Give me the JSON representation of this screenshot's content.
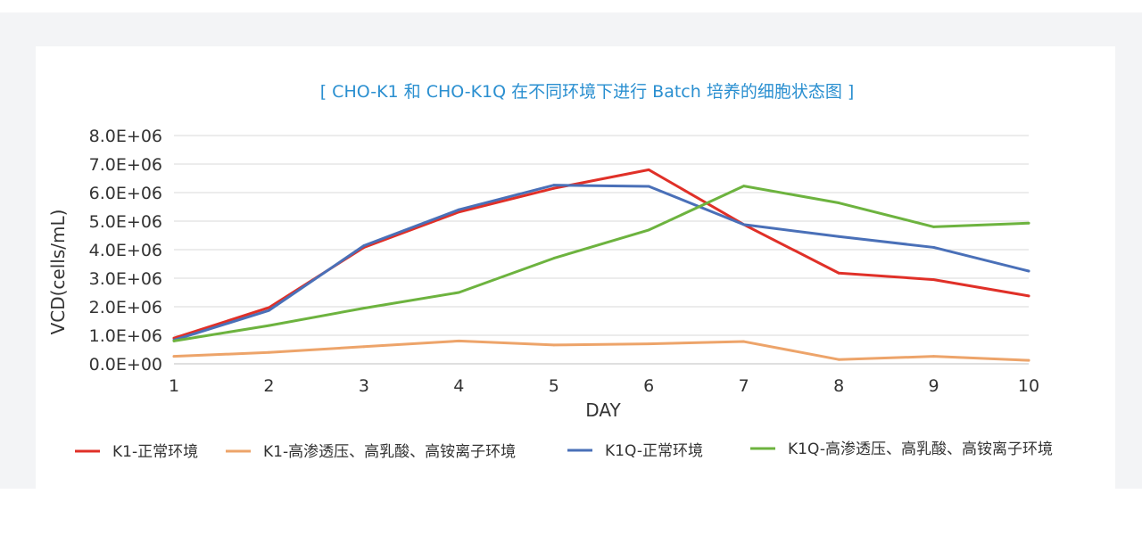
{
  "chart_data": {
    "type": "line",
    "title": "[ CHO-K1 和 CHO-K1Q 在不同环境下进行 Batch 培养的细胞状态图 ]",
    "xlabel": "DAY",
    "ylabel": "VCD(cells/mL)",
    "x": [
      1,
      2,
      3,
      4,
      5,
      6,
      7,
      8,
      9,
      10
    ],
    "x_tick_labels": [
      "1",
      "2",
      "3",
      "4",
      "5",
      "6",
      "7",
      "8",
      "9",
      "10"
    ],
    "ylim": [
      0,
      8000000
    ],
    "y_tick_labels": [
      "0.0E+00",
      "1.0E+06",
      "2.0E+06",
      "3.0E+06",
      "4.0E+06",
      "5.0E+06",
      "6.0E+06",
      "7.0E+06",
      "8.0E+06"
    ],
    "grid": true,
    "legend_position": "bottom",
    "series": [
      {
        "name": "K1-正常环境",
        "color": "#e03028",
        "values": [
          900000,
          1970000,
          4080000,
          5320000,
          6150000,
          6800000,
          4880000,
          3180000,
          2950000,
          2380000
        ]
      },
      {
        "name": "K1-高渗透压、高乳酸、高铵离子环境",
        "color": "#eda46a",
        "values": [
          260000,
          400000,
          600000,
          800000,
          660000,
          700000,
          780000,
          150000,
          260000,
          120000
        ]
      },
      {
        "name": "K1Q-正常环境",
        "color": "#4a70b8",
        "values": [
          830000,
          1870000,
          4140000,
          5400000,
          6260000,
          6220000,
          4880000,
          4460000,
          4080000,
          3250000
        ]
      },
      {
        "name": "K1Q-高渗透压、高乳酸、高铵离子环境",
        "color": "#6db33f",
        "values": [
          800000,
          1340000,
          1950000,
          2500000,
          3700000,
          4690000,
          6230000,
          5640000,
          4800000,
          4930000
        ]
      }
    ]
  }
}
